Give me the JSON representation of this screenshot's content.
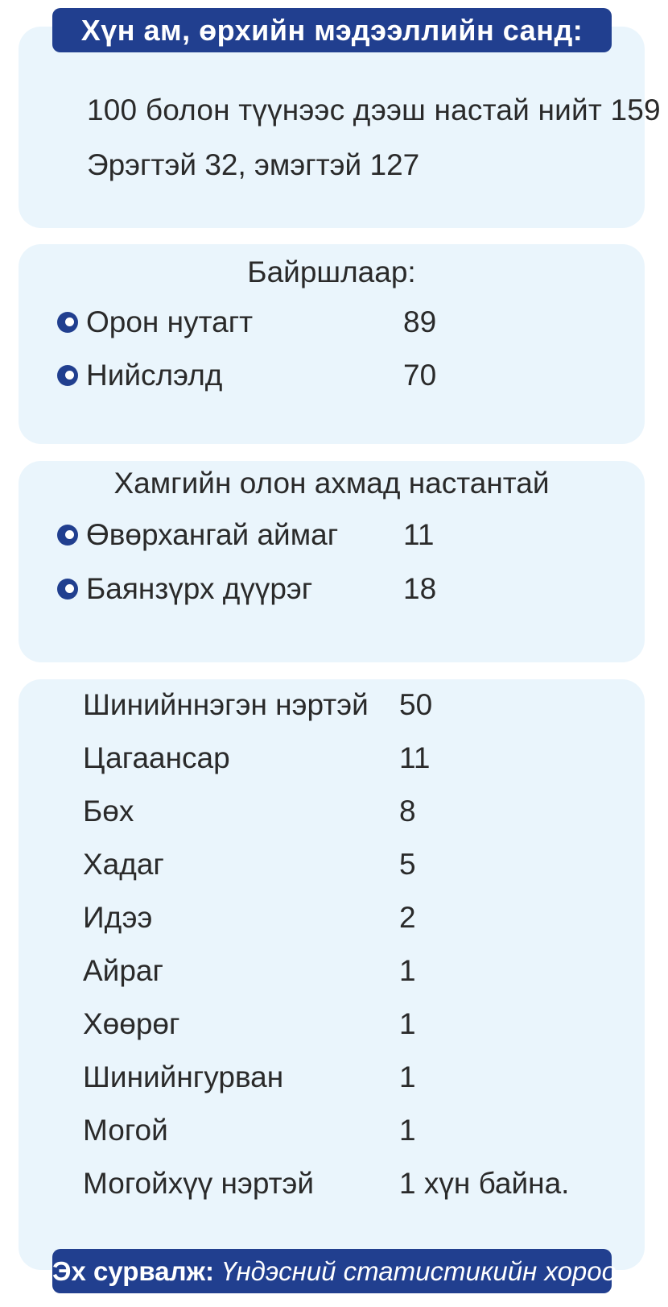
{
  "title": "Хүн ам, өрхийн мэдээллийн санд:",
  "total": {
    "line1": "100 болон түүнээс дээш настай нийт 159",
    "line2": "Эрэгтэй 32, эмэгтэй 127"
  },
  "location": {
    "heading": "Байршлаар:",
    "items": [
      {
        "label": "Орон нутагт",
        "value": "89"
      },
      {
        "label": "Нийслэлд",
        "value": "70"
      }
    ]
  },
  "most": {
    "heading": "Хамгийн олон ахмад настантай",
    "items": [
      {
        "label": "Өвөрхангай аймаг",
        "value": "11"
      },
      {
        "label": "Баянзүрх дүүрэг",
        "value": "18"
      }
    ]
  },
  "names": [
    {
      "label": "Шинийннэгэн нэртэй",
      "count": "50"
    },
    {
      "label": "Цагаансар",
      "count": "11"
    },
    {
      "label": "Бөх",
      "count": "8"
    },
    {
      "label": "Хадаг",
      "count": "5"
    },
    {
      "label": "Идээ",
      "count": "2"
    },
    {
      "label": "Айраг",
      "count": "1"
    },
    {
      "label": "Хөөрөг",
      "count": "1"
    },
    {
      "label": "Шинийнгурван",
      "count": "1"
    },
    {
      "label": "Могой",
      "count": "1"
    },
    {
      "label": "Могойхүү нэртэй",
      "count": "1 хүн байна."
    }
  ],
  "source": {
    "label": "Эх сурвалж:",
    "value": "Үндэсний статистикийн хороо"
  },
  "colors": {
    "accent": "#213f8f",
    "panel": "#eaf5fc",
    "text": "#2a2a2a"
  }
}
